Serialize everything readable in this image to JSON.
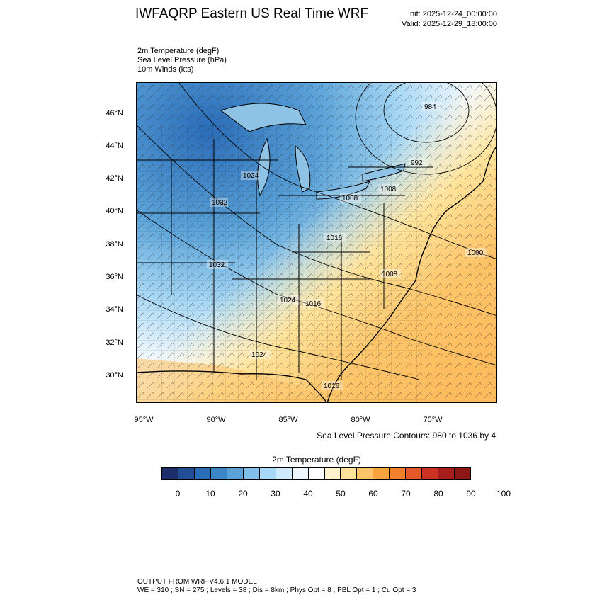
{
  "header": {
    "title": "IWFAQRP Eastern US Real Time WRF",
    "init": "Init: 2025-12-24_00:00:00",
    "valid": "Valid: 2025-12-29_18:00:00"
  },
  "fields": [
    "2m Temperature   (degF)",
    "Sea Level Pressure   (hPa)",
    "10m Winds   (kts)"
  ],
  "map": {
    "lat_labels": [
      "46°N",
      "44°N",
      "42°N",
      "40°N",
      "38°N",
      "36°N",
      "34°N",
      "32°N",
      "30°N"
    ],
    "lon_labels": [
      "95°W",
      "90°W",
      "85°W",
      "80°W",
      "75°W"
    ],
    "pressure_labels": [
      "984",
      "992",
      "1024",
      "1032",
      "1008",
      "1008",
      "1016",
      "1000",
      "1032",
      "1008",
      "1024",
      "1016",
      "1024",
      "1016"
    ],
    "contour_note": "Sea Level Pressure Contours: 980 to 1036 by 4"
  },
  "colorbar": {
    "title": "2m Temperature  (degF)",
    "colors": [
      "#1c2f6b",
      "#224e96",
      "#2a6cb8",
      "#3b87c8",
      "#5aa2d8",
      "#7fbfe8",
      "#a8d8f5",
      "#cfeafb",
      "#eef7fd",
      "#ffffff",
      "#fff2cc",
      "#ffe39a",
      "#fdc56a",
      "#f9a33e",
      "#f2802c",
      "#e45a2a",
      "#cc3224",
      "#a81d1d",
      "#8b1717"
    ],
    "labels": [
      "0",
      "10",
      "20",
      "30",
      "40",
      "50",
      "60",
      "70",
      "80",
      "90",
      "100"
    ]
  },
  "footer": {
    "line1": "OUTPUT FROM WRF V4.6.1 MODEL",
    "line2": "WE = 310 ; SN = 275 ; Levels = 38 ; Dis = 8km ; Phys Opt = 8 ; PBL Opt = 1 ; Cu Opt = 3"
  }
}
